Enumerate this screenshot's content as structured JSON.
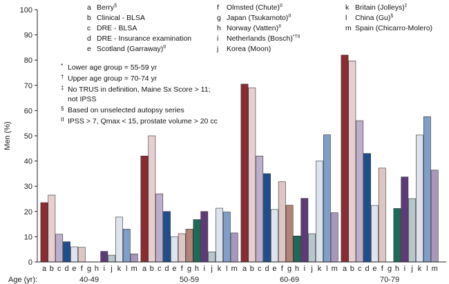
{
  "chart_data": {
    "type": "bar",
    "ylabel": "Men (%)",
    "xlabel": "Age (yr):",
    "ylim": [
      0,
      100
    ],
    "yticks": [
      "0",
      "10",
      "20",
      "30",
      "40",
      "50",
      "60",
      "70",
      "80",
      "90",
      "100"
    ],
    "series_keys": [
      "a",
      "b",
      "c",
      "d",
      "e",
      "f",
      "g",
      "h",
      "i",
      "j",
      "k",
      "l",
      "m"
    ],
    "series_names": [
      "Berry",
      "Clinical - BLSA",
      "DRE - BLSA",
      "DRE - Insurance examination",
      "Scotland (Garraway)",
      "Olmsted (Chute)",
      "Japan (Tsukamoto)",
      "Norway (Vatten)",
      "Netherlands (Bosch)",
      "Korea (Moon)",
      "Britain (Jolleys)",
      "China (Gu)",
      "Spain (Chicarro-Molero)"
    ],
    "series_colors": [
      "#8b2c32",
      "#e8cfcf",
      "#bdaecb",
      "#1f4e8c",
      "#dde4f0",
      "#dcc7c5",
      "#b48179",
      "#1e6a58",
      "#5e3b78",
      "#b7c6ca",
      "#dde3ec",
      "#7f9ec8",
      "#a896bb"
    ],
    "groups": [
      {
        "label": "40-49",
        "values": [
          23.5,
          26.5,
          11,
          8,
          6,
          5.8,
          0,
          0,
          4.2,
          2.7,
          17.8,
          13,
          3.2
        ]
      },
      {
        "label": "50-59",
        "values": [
          42,
          50,
          27,
          20,
          10,
          11.2,
          13,
          16.8,
          20,
          4,
          21.3,
          19.8,
          11.5
        ]
      },
      {
        "label": "60-69",
        "values": [
          70.5,
          69,
          42,
          35,
          20.8,
          31.8,
          22.5,
          10.3,
          25.2,
          11.2,
          40,
          50.4,
          19.5
        ]
      },
      {
        "label": "70-79",
        "values": [
          82,
          79.7,
          56,
          43,
          22.4,
          37.2,
          0,
          21.2,
          33.7,
          25.1,
          50.3,
          57.6,
          36.4
        ]
      }
    ]
  },
  "legend": {
    "col1": [
      {
        "key": "a",
        "name": "Berry",
        "sup": "§"
      },
      {
        "key": "b",
        "name": "Clinical - BLSA",
        "sup": ""
      },
      {
        "key": "c",
        "name": "DRE - BLSA",
        "sup": ""
      },
      {
        "key": "d",
        "name": "DRE - Insurance examination",
        "sup": ""
      },
      {
        "key": "e",
        "name": "Scotland (Garraway)",
        "sup": "II"
      }
    ],
    "col2": [
      {
        "key": "f",
        "name": "Olmsted (Chute)",
        "sup": "II"
      },
      {
        "key": "g",
        "name": "Japan (Tsukamoto)",
        "sup": "II"
      },
      {
        "key": "h",
        "name": "Norway (Vatten)",
        "sup": "II"
      },
      {
        "key": "i",
        "name": "Netherlands (Bosch)",
        "sup": "*†II"
      },
      {
        "key": "j",
        "name": "Korea (Moon)",
        "sup": ""
      }
    ],
    "col3": [
      {
        "key": "k",
        "name": "Britain (Jolleys)",
        "sup": "‡"
      },
      {
        "key": "l",
        "name": "China (Gu)",
        "sup": "§"
      },
      {
        "key": "m",
        "name": "Spain (Chicarro-Molero)",
        "sup": ""
      }
    ]
  },
  "notes": [
    {
      "sym": "*",
      "text": "Lower age group = 55-59 yr"
    },
    {
      "sym": "†",
      "text": "Upper age group = 70-74 yr"
    },
    {
      "sym": "‡",
      "text": "No TRUS in definition, Maine Sx Score > 11;"
    },
    {
      "sym": "",
      "text": "not IPSS"
    },
    {
      "sym": "§",
      "text": "Based on unselected autopsy series"
    },
    {
      "sym": "II",
      "text": "IPSS > 7, Qmax < 15, prostate volume > 20 cc"
    }
  ]
}
